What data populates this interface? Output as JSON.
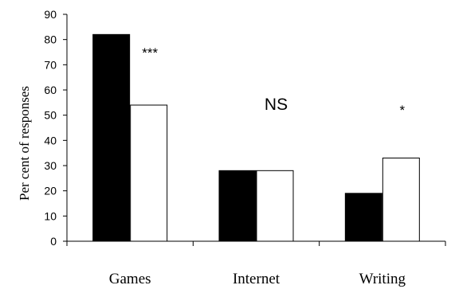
{
  "chart_data": {
    "type": "bar",
    "categories": [
      "Games",
      "Internet",
      "Writing"
    ],
    "series": [
      {
        "values": [
          82,
          28,
          19
        ],
        "color": "#000000"
      },
      {
        "values": [
          54,
          28,
          33
        ],
        "color": "#ffffff"
      }
    ],
    "annotations": [
      "***",
      "NS",
      "*"
    ],
    "xlabel": "",
    "ylabel": "Per cent of responses",
    "ylim": [
      0,
      90
    ],
    "yticks": [
      0,
      10,
      20,
      30,
      40,
      50,
      60,
      70,
      80,
      90
    ],
    "grid": false,
    "legend": "none"
  }
}
